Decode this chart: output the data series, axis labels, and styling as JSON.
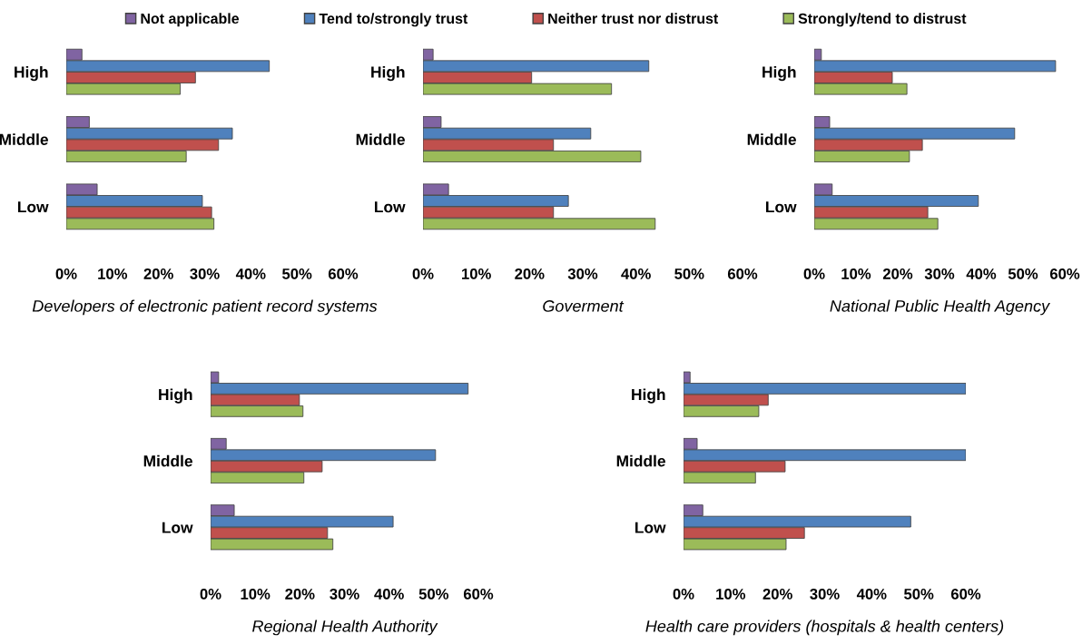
{
  "chart_data": [
    {
      "type": "bar",
      "orientation": "horizontal",
      "xlabel": "Developers of electronic patient record systems",
      "categories": [
        "High",
        "Middle",
        "Low"
      ],
      "xlim": [
        0,
        60
      ],
      "xticks": [
        {
          "value": 0,
          "label": "0%"
        },
        {
          "value": 10,
          "label": "10%"
        },
        {
          "value": 20,
          "label": "20%"
        },
        {
          "value": 30,
          "label": "30%"
        },
        {
          "value": 40,
          "label": "40%"
        },
        {
          "value": 50,
          "label": "50%"
        },
        {
          "value": 60,
          "label": "60%"
        }
      ],
      "legend": "top",
      "grid": false,
      "series": [
        {
          "name": "Not applicable",
          "color": "#8064a2",
          "values": [
            3.4,
            5,
            6.7
          ]
        },
        {
          "name": "Tend to/strongly trust",
          "color": "#4f81bd",
          "values": [
            44,
            36,
            29.5
          ]
        },
        {
          "name": "Neither trust nor distrust",
          "color": "#c0504d",
          "values": [
            28,
            33,
            31.5
          ]
        },
        {
          "name": "Strongly/tend to distrust",
          "color": "#9bbb59",
          "values": [
            24.7,
            26,
            32
          ]
        }
      ]
    },
    {
      "type": "bar",
      "orientation": "horizontal",
      "xlabel": "Goverment",
      "categories": [
        "High",
        "Middle",
        "Low"
      ],
      "xlim": [
        0,
        60
      ],
      "xticks": [
        {
          "value": 0,
          "label": "0%"
        },
        {
          "value": 10,
          "label": "10%"
        },
        {
          "value": 20,
          "label": "20%"
        },
        {
          "value": 30,
          "label": "30%"
        },
        {
          "value": 40,
          "label": "40%"
        },
        {
          "value": 50,
          "label": "50%"
        },
        {
          "value": 60,
          "label": "60%"
        }
      ],
      "grid": false,
      "series": [
        {
          "color": "#8064a2",
          "values": [
            1.9,
            3.4,
            4.8
          ]
        },
        {
          "color": "#4f81bd",
          "values": [
            42.4,
            31.5,
            27.3
          ]
        },
        {
          "color": "#c0504d",
          "values": [
            20.4,
            24.5,
            24.5
          ]
        },
        {
          "color": "#9bbb59",
          "values": [
            35.4,
            40.9,
            43.6
          ]
        }
      ]
    },
    {
      "type": "bar",
      "orientation": "horizontal",
      "xlabel": "National Public Health Agency",
      "categories": [
        "High",
        "Middle",
        "Low"
      ],
      "xlim": [
        0,
        60
      ],
      "xticks": [
        {
          "value": 0,
          "label": "0%"
        },
        {
          "value": 10,
          "label": "10%"
        },
        {
          "value": 20,
          "label": "20%"
        },
        {
          "value": 30,
          "label": "30%"
        },
        {
          "value": 40,
          "label": "40%"
        },
        {
          "value": 50,
          "label": "50%"
        },
        {
          "value": 60,
          "label": "60%"
        }
      ],
      "grid": false,
      "series": [
        {
          "color": "#8064a2",
          "values": [
            1.7,
            3.7,
            4.3
          ]
        },
        {
          "color": "#4f81bd",
          "values": [
            57.8,
            48,
            39.3
          ]
        },
        {
          "color": "#c0504d",
          "values": [
            18.7,
            25.9,
            27.2
          ]
        },
        {
          "color": "#9bbb59",
          "values": [
            22.2,
            22.8,
            29.6
          ]
        }
      ]
    },
    {
      "type": "bar",
      "orientation": "horizontal",
      "xlabel": "Regional Health Authority",
      "categories": [
        "High",
        "Middle",
        "Low"
      ],
      "xlim": [
        0,
        60
      ],
      "xticks": [
        {
          "value": 0,
          "label": "0%"
        },
        {
          "value": 10,
          "label": "10%"
        },
        {
          "value": 20,
          "label": "20%"
        },
        {
          "value": 30,
          "label": "30%"
        },
        {
          "value": 40,
          "label": "40%"
        },
        {
          "value": 50,
          "label": "50%"
        },
        {
          "value": 60,
          "label": "60%"
        }
      ],
      "grid": false,
      "series": [
        {
          "color": "#8064a2",
          "values": [
            1.8,
            3.5,
            5.3
          ]
        },
        {
          "color": "#4f81bd",
          "values": [
            57.7,
            50.4,
            40.9
          ]
        },
        {
          "color": "#c0504d",
          "values": [
            19.9,
            25,
            26.2
          ]
        },
        {
          "color": "#9bbb59",
          "values": [
            20.7,
            20.9,
            27.4
          ]
        }
      ]
    },
    {
      "type": "bar",
      "orientation": "horizontal",
      "xlabel": "Health care providers (hospitals & health centers)",
      "categories": [
        "High",
        "Middle",
        "Low"
      ],
      "xlim": [
        0,
        60
      ],
      "xticks": [
        {
          "value": 0,
          "label": "0%"
        },
        {
          "value": 10,
          "label": "10%"
        },
        {
          "value": 20,
          "label": "20%"
        },
        {
          "value": 30,
          "label": "30%"
        },
        {
          "value": 40,
          "label": "40%"
        },
        {
          "value": 50,
          "label": "50%"
        },
        {
          "value": 60,
          "label": "60%"
        }
      ],
      "grid": false,
      "series": [
        {
          "color": "#8064a2",
          "values": [
            1.4,
            2.9,
            4.1
          ]
        },
        {
          "color": "#4f81bd",
          "values": [
            60,
            60,
            48.3
          ]
        },
        {
          "color": "#c0504d",
          "values": [
            18,
            21.6,
            25.7
          ]
        },
        {
          "color": "#9bbb59",
          "values": [
            16,
            15.3,
            21.8
          ]
        }
      ]
    }
  ]
}
